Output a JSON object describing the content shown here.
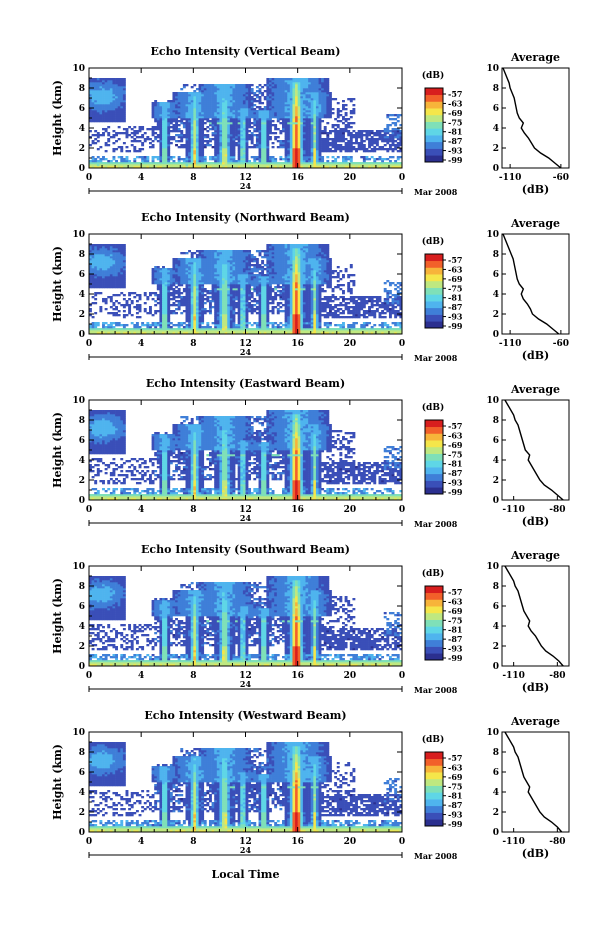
{
  "colors": {
    "background": "#ffffff",
    "axis": "#000000",
    "colormap": [
      "#2b2f8f",
      "#3a4fb8",
      "#3f7fd8",
      "#4fb4ee",
      "#5fd6e6",
      "#7fe0b8",
      "#bfe880",
      "#f5e64a",
      "#f7b43a",
      "#f2602a",
      "#d81e1e"
    ],
    "colormap_ticks_text": [
      "-57",
      "-63",
      "-69",
      "-75",
      "-81",
      "-87",
      "-93",
      "-99"
    ]
  },
  "common": {
    "ylabel": "Height (km)",
    "y_ticks": [
      "0",
      "2",
      "4",
      "6",
      "8",
      "10"
    ],
    "x_ticks": [
      "0",
      "4",
      "8",
      "12",
      "16",
      "20",
      "0"
    ],
    "day_label": "24",
    "month_label": "Mar 2008",
    "colorbar_unit": "(dB)",
    "profile_title": "Average",
    "profile_xlabel": "(dB)",
    "xlabel_bottom": "Local Time"
  },
  "chart_data": [
    {
      "type": "heatmap",
      "title": "Echo Intensity (Vertical Beam)",
      "xlim": [
        0,
        24
      ],
      "ylim": [
        0,
        10
      ],
      "colorbar": {
        "label": "(dB)",
        "ticks": [
          -57,
          -63,
          -69,
          -75,
          -81,
          -87,
          -93,
          -99
        ]
      },
      "profile": {
        "title": "Average",
        "xticks": [
          "-110",
          "-60"
        ],
        "xlim": [
          -118,
          -52
        ],
        "ylim": [
          0,
          10
        ],
        "heights": [
          0,
          0.5,
          1,
          1.5,
          2,
          2.5,
          3,
          3.5,
          4,
          4.5,
          5,
          5.5,
          6,
          6.5,
          7,
          7.5,
          8,
          8.5,
          9,
          9.5,
          10
        ],
        "values": [
          -60,
          -66,
          -72,
          -80,
          -86,
          -89,
          -92,
          -96,
          -99,
          -97,
          -101,
          -103,
          -104,
          -105,
          -106,
          -108,
          -110,
          -111,
          -113,
          -115,
          -117
        ]
      }
    },
    {
      "type": "heatmap",
      "title": "Echo Intensity (Northward Beam)",
      "xlim": [
        0,
        24
      ],
      "ylim": [
        0,
        10
      ],
      "colorbar": {
        "label": "(dB)",
        "ticks": [
          -57,
          -63,
          -69,
          -75,
          -81,
          -87,
          -93,
          -99
        ]
      },
      "profile": {
        "title": "Average",
        "xticks": [
          "-110",
          "-60"
        ],
        "xlim": [
          -118,
          -52
        ],
        "ylim": [
          0,
          10
        ],
        "heights": [
          0,
          0.5,
          1,
          1.5,
          2,
          2.5,
          3,
          3.5,
          4,
          4.5,
          5,
          5.5,
          6,
          6.5,
          7,
          7.5,
          8,
          8.5,
          9,
          9.5,
          10
        ],
        "values": [
          -62,
          -68,
          -74,
          -82,
          -88,
          -90,
          -93,
          -97,
          -99,
          -97,
          -101,
          -103,
          -104,
          -105,
          -106,
          -107,
          -109,
          -111,
          -113,
          -115,
          -117
        ]
      }
    },
    {
      "type": "heatmap",
      "title": "Echo Intensity (Eastward Beam)",
      "xlim": [
        0,
        24
      ],
      "ylim": [
        0,
        10
      ],
      "colorbar": {
        "label": "(dB)",
        "ticks": [
          -57,
          -63,
          -69,
          -75,
          -81,
          -87,
          -93,
          -99
        ]
      },
      "profile": {
        "title": "Average",
        "xticks": [
          "-110",
          "-80"
        ],
        "xlim": [
          -118,
          -72
        ],
        "ylim": [
          0,
          10
        ],
        "heights": [
          0,
          0.5,
          1,
          1.5,
          2,
          2.5,
          3,
          3.5,
          4,
          4.5,
          5,
          5.5,
          6,
          6.5,
          7,
          7.5,
          8,
          8.5,
          9,
          9.5,
          10
        ],
        "values": [
          -76,
          -80,
          -84,
          -89,
          -92,
          -94,
          -96,
          -98,
          -100,
          -99,
          -102,
          -103,
          -104,
          -105,
          -106,
          -107,
          -109,
          -110,
          -112,
          -114,
          -116
        ]
      }
    },
    {
      "type": "heatmap",
      "title": "Echo Intensity (Southward Beam)",
      "xlim": [
        0,
        24
      ],
      "ylim": [
        0,
        10
      ],
      "colorbar": {
        "label": "(dB)",
        "ticks": [
          -57,
          -63,
          -69,
          -75,
          -81,
          -87,
          -93,
          -99
        ]
      },
      "profile": {
        "title": "Average",
        "xticks": [
          "-110",
          "-80"
        ],
        "xlim": [
          -118,
          -72
        ],
        "ylim": [
          0,
          10
        ],
        "heights": [
          0,
          0.5,
          1,
          1.5,
          2,
          2.5,
          3,
          3.5,
          4,
          4.5,
          5,
          5.5,
          6,
          6.5,
          7,
          7.5,
          8,
          8.5,
          9,
          9.5,
          10
        ],
        "values": [
          -76,
          -79,
          -83,
          -88,
          -91,
          -93,
          -95,
          -98,
          -100,
          -99,
          -101,
          -103,
          -104,
          -105,
          -106,
          -107,
          -109,
          -110,
          -112,
          -114,
          -116
        ]
      }
    },
    {
      "type": "heatmap",
      "title": "Echo Intensity (Westward Beam)",
      "xlim": [
        0,
        24
      ],
      "ylim": [
        0,
        10
      ],
      "colorbar": {
        "label": "(dB)",
        "ticks": [
          -57,
          -63,
          -69,
          -75,
          -81,
          -87,
          -93,
          -99
        ]
      },
      "profile": {
        "title": "Average",
        "xticks": [
          "-110",
          "-80"
        ],
        "xlim": [
          -118,
          -72
        ],
        "ylim": [
          0,
          10
        ],
        "heights": [
          0,
          0.5,
          1,
          1.5,
          2,
          2.5,
          3,
          3.5,
          4,
          4.5,
          5,
          5.5,
          6,
          6.5,
          7,
          7.5,
          8,
          8.5,
          9,
          9.5,
          10
        ],
        "values": [
          -77,
          -80,
          -84,
          -89,
          -92,
          -94,
          -96,
          -98,
          -100,
          -99,
          -101,
          -103,
          -104,
          -105,
          -106,
          -107,
          -109,
          -110,
          -112,
          -114,
          -116
        ]
      }
    }
  ]
}
